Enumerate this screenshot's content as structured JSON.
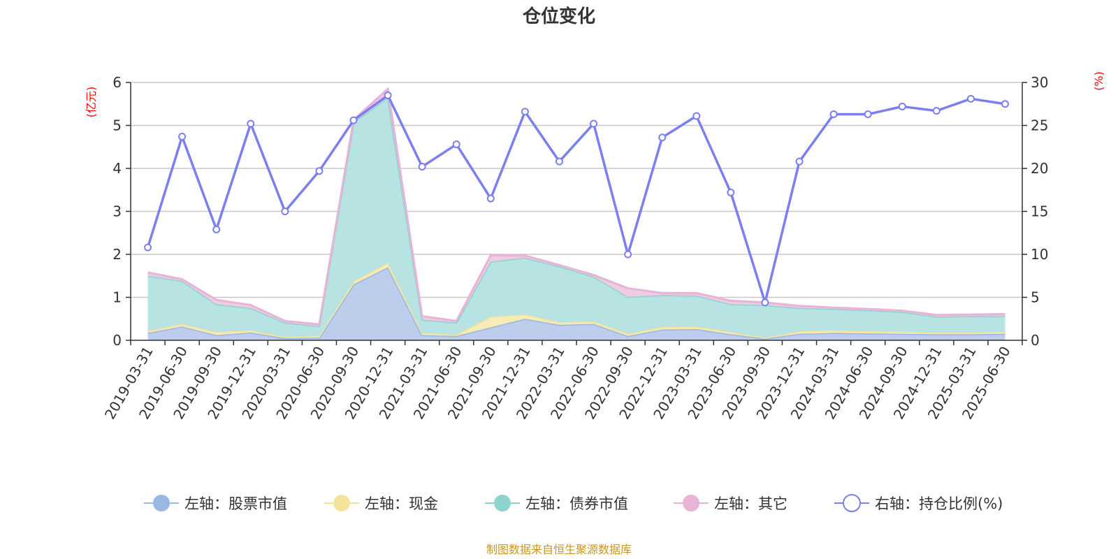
{
  "chart_data": {
    "type": "area",
    "title": "仓位变化",
    "source_note": "制图数据来自恒生聚源数据库",
    "left_unit": "(亿元)",
    "right_unit": "(%)",
    "categories": [
      "2019-03-31",
      "2019-06-30",
      "2019-09-30",
      "2019-12-31",
      "2020-03-31",
      "2020-06-30",
      "2020-09-30",
      "2020-12-31",
      "2021-03-31",
      "2021-06-30",
      "2021-09-30",
      "2021-12-31",
      "2022-03-31",
      "2022-06-30",
      "2022-09-30",
      "2022-12-31",
      "2023-03-31",
      "2023-06-30",
      "2023-09-30",
      "2023-12-31",
      "2024-03-31",
      "2024-06-30",
      "2024-09-30",
      "2024-12-31",
      "2025-03-31",
      "2025-06-30"
    ],
    "left_axis": {
      "min": 0,
      "max": 6,
      "ticks": [
        0,
        1,
        2,
        3,
        4,
        5,
        6
      ]
    },
    "right_axis": {
      "min": 0,
      "max": 30,
      "ticks": [
        0,
        5,
        10,
        15,
        20,
        25,
        30
      ]
    },
    "grid": true,
    "legend_position": "bottom",
    "series": [
      {
        "name": "左轴：股票市值",
        "axis": "left",
        "stack": "left",
        "color": "#9ab6e2",
        "fill": "#b8cbeb",
        "values": [
          0.17,
          0.32,
          0.12,
          0.18,
          0.05,
          0.06,
          1.3,
          1.7,
          0.12,
          0.1,
          0.3,
          0.5,
          0.36,
          0.38,
          0.1,
          0.25,
          0.26,
          0.14,
          0.04,
          0.15,
          0.17,
          0.16,
          0.15,
          0.14,
          0.14,
          0.15
        ]
      },
      {
        "name": "左轴：现金",
        "axis": "left",
        "stack": "left",
        "color": "#f5e39c",
        "fill": "#f7eab3",
        "values": [
          0.05,
          0.06,
          0.07,
          0.05,
          0.03,
          0.04,
          0.07,
          0.1,
          0.05,
          0.03,
          0.25,
          0.1,
          0.06,
          0.06,
          0.05,
          0.06,
          0.06,
          0.05,
          0.02,
          0.06,
          0.06,
          0.05,
          0.05,
          0.04,
          0.04,
          0.05
        ]
      },
      {
        "name": "左轴：债券市值",
        "axis": "left",
        "stack": "left",
        "color": "#8fd3d1",
        "fill": "#b3e2e1",
        "values": [
          1.28,
          1.0,
          0.65,
          0.52,
          0.33,
          0.23,
          3.7,
          3.85,
          0.31,
          0.28,
          1.28,
          1.32,
          1.3,
          1.04,
          0.86,
          0.74,
          0.72,
          0.65,
          0.76,
          0.54,
          0.5,
          0.49,
          0.46,
          0.37,
          0.38,
          0.36
        ]
      },
      {
        "name": "左轴：其它",
        "axis": "left",
        "stack": "left",
        "color": "#e7b3d6",
        "fill": "#efc9e3",
        "values": [
          0.08,
          0.04,
          0.1,
          0.07,
          0.04,
          0.04,
          0.06,
          0.2,
          0.08,
          0.04,
          0.15,
          0.05,
          0.03,
          0.04,
          0.2,
          0.05,
          0.06,
          0.08,
          0.06,
          0.05,
          0.03,
          0.03,
          0.03,
          0.04,
          0.04,
          0.05
        ]
      },
      {
        "name": "右轴：持仓比例(%)",
        "axis": "right",
        "type": "line",
        "color": "#7b7ff0",
        "values": [
          10.8,
          23.7,
          12.9,
          25.2,
          15.0,
          19.7,
          25.6,
          28.5,
          20.2,
          22.8,
          16.5,
          26.6,
          20.8,
          25.2,
          10.0,
          23.6,
          26.1,
          17.2,
          4.4,
          20.8,
          26.3,
          26.3,
          27.2,
          26.7,
          28.1,
          27.5
        ]
      }
    ],
    "colors": {
      "title": "#333333",
      "axis_text": "#333333",
      "unit_text": "#ff0000",
      "source_text": "#c8961e",
      "grid": "#c8c8c8"
    }
  }
}
